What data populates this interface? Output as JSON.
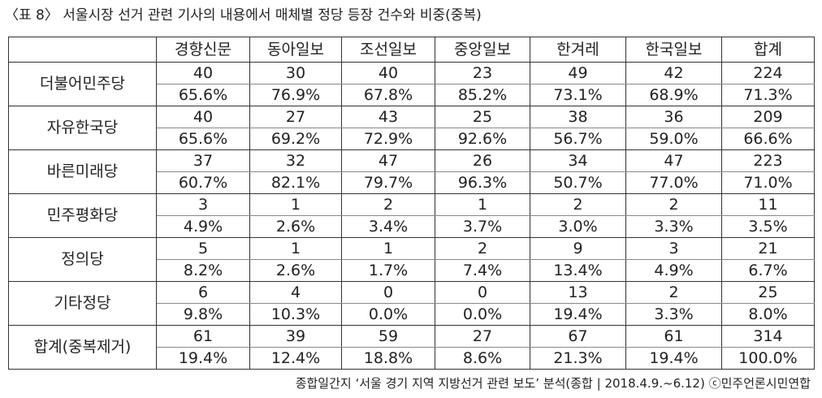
{
  "title": "〈표 8〉 서울시장 선거 관련 기사의 내용에서 매체별 정당 등장 건수와 비중(중복)",
  "table": {
    "columns": [
      "경향신문",
      "동아일보",
      "조선일보",
      "중앙일보",
      "한겨레",
      "한국일보",
      "합계"
    ],
    "rows": [
      {
        "label": "더불어민주당",
        "counts": [
          "40",
          "30",
          "40",
          "23",
          "49",
          "42",
          "224"
        ],
        "percents": [
          "65.6%",
          "76.9%",
          "67.8%",
          "85.2%",
          "73.1%",
          "68.9%",
          "71.3%"
        ]
      },
      {
        "label": "자유한국당",
        "counts": [
          "40",
          "27",
          "43",
          "25",
          "38",
          "36",
          "209"
        ],
        "percents": [
          "65.6%",
          "69.2%",
          "72.9%",
          "92.6%",
          "56.7%",
          "59.0%",
          "66.6%"
        ]
      },
      {
        "label": "바른미래당",
        "counts": [
          "37",
          "32",
          "47",
          "26",
          "34",
          "47",
          "223"
        ],
        "percents": [
          "60.7%",
          "82.1%",
          "79.7%",
          "96.3%",
          "50.7%",
          "77.0%",
          "71.0%"
        ]
      },
      {
        "label": "민주평화당",
        "counts": [
          "3",
          "1",
          "2",
          "1",
          "2",
          "2",
          "11"
        ],
        "percents": [
          "4.9%",
          "2.6%",
          "3.4%",
          "3.7%",
          "3.0%",
          "3.3%",
          "3.5%"
        ]
      },
      {
        "label": "정의당",
        "counts": [
          "5",
          "1",
          "1",
          "2",
          "9",
          "3",
          "21"
        ],
        "percents": [
          "8.2%",
          "2.6%",
          "1.7%",
          "7.4%",
          "13.4%",
          "4.9%",
          "6.7%"
        ]
      },
      {
        "label": "기타정당",
        "counts": [
          "6",
          "4",
          "0",
          "0",
          "13",
          "2",
          "25"
        ],
        "percents": [
          "9.8%",
          "10.3%",
          "0.0%",
          "0.0%",
          "19.4%",
          "3.3%",
          "8.0%"
        ]
      },
      {
        "label": "합계(중복제거)",
        "counts": [
          "61",
          "39",
          "59",
          "27",
          "67",
          "61",
          "314"
        ],
        "percents": [
          "19.4%",
          "12.4%",
          "18.8%",
          "8.6%",
          "21.3%",
          "19.4%",
          "100.0%"
        ]
      }
    ]
  },
  "footnote": "종합일간지 ‘서울 경기 지역 지방선거 관련 보도’ 분석(종합 | 2018.4.9.~6.12) ⓒ민주언론시민연합"
}
